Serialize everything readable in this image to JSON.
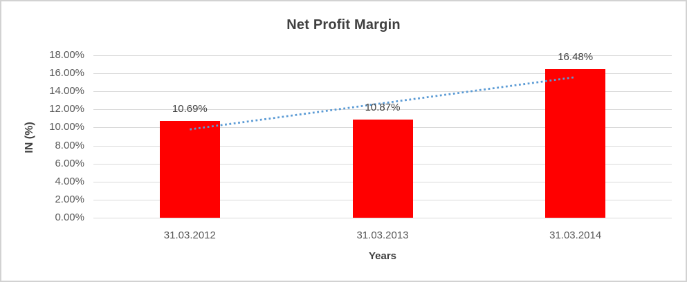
{
  "chart_data": {
    "type": "bar",
    "title": "Net Profit Margin",
    "xlabel": "Years",
    "ylabel": "IN (%)",
    "categories": [
      "31.03.2012",
      "31.03.2013",
      "31.03.2014"
    ],
    "values": [
      10.69,
      10.87,
      16.48
    ],
    "data_labels": [
      "10.69%",
      "10.87%",
      "16.48%"
    ],
    "ylim": [
      0,
      18
    ],
    "ytick_step": 2,
    "ytick_labels": [
      "18.00%",
      "16.00%",
      "14.00%",
      "12.00%",
      "10.00%",
      "8.00%",
      "6.00%",
      "4.00%",
      "2.00%",
      "0.00%"
    ],
    "grid": true,
    "legend": "none",
    "trendline": {
      "type": "linear",
      "style": "dotted",
      "start_value": 9.79,
      "end_value": 15.58
    },
    "colors": {
      "bar": "#FF0000",
      "trendline": "#5B9BD5",
      "gridline": "#D9D9D9",
      "title_text": "#404040",
      "tick_text": "#595959",
      "axis_label_text": "#404040",
      "data_label_text": "#404040",
      "chart_border": "#D2D2D2",
      "background": "#FFFFFF"
    }
  }
}
